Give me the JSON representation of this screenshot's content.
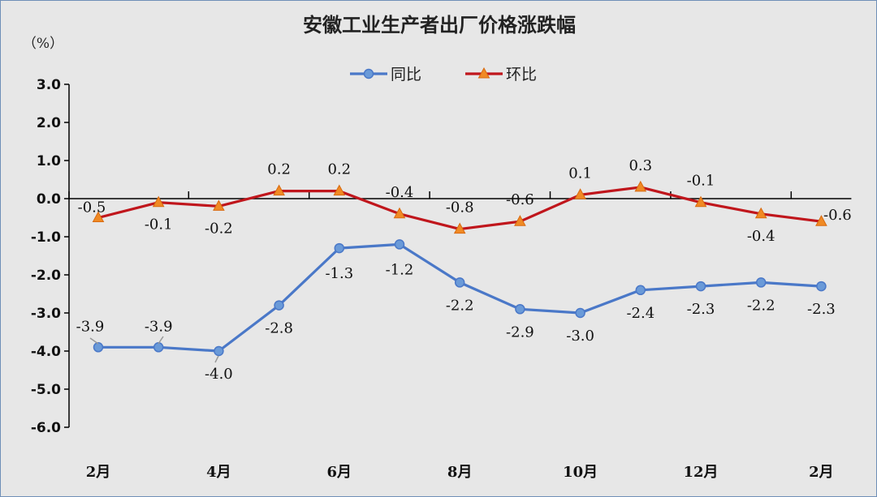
{
  "chart_data": {
    "type": "line",
    "title": "安徽工业生产者出厂价格涨跌幅",
    "unit_label": "（%）",
    "xlabel": "",
    "ylabel": "",
    "ylim": [
      -6.0,
      3.0
    ],
    "yticks": [
      "3.0",
      "2.0",
      "1.0",
      "0.0",
      "-1.0",
      "-2.0",
      "-3.0",
      "-4.0",
      "-5.0",
      "-6.0"
    ],
    "ytick_values": [
      3,
      2,
      1,
      0,
      -1,
      -2,
      -3,
      -4,
      -5,
      -6
    ],
    "x_tick_labels": [
      "2月",
      "4月",
      "6月",
      "8月",
      "10月",
      "12月",
      "2月"
    ],
    "x_tick_indices": [
      0,
      2,
      4,
      6,
      8,
      10,
      12
    ],
    "point_count": 13,
    "legend_position": "top-center",
    "grid": false,
    "series": [
      {
        "name": "同比",
        "color": "#4a78c8",
        "marker": "circle",
        "values": [
          -3.9,
          -3.9,
          -4.0,
          -2.8,
          -1.3,
          -1.2,
          -2.2,
          -2.9,
          -3.0,
          -2.4,
          -2.3,
          -2.2,
          -2.3
        ],
        "labels": [
          "-3.9",
          "-3.9",
          "-4.0",
          "-2.8",
          "-1.3",
          "-1.2",
          "-2.2",
          "-2.9",
          "-3.0",
          "-2.4",
          "-2.3",
          "-2.2",
          "-2.3"
        ]
      },
      {
        "name": "环比",
        "color": "#c0161c",
        "marker_color": "#f08a24",
        "marker": "triangle",
        "values": [
          -0.5,
          -0.1,
          -0.2,
          0.2,
          0.2,
          -0.4,
          -0.8,
          -0.6,
          0.1,
          0.3,
          -0.1,
          -0.4,
          -0.6
        ],
        "labels": [
          "-0.5",
          "-0.1",
          "-0.2",
          "0.2",
          "0.2",
          "-0.4",
          "-0.8",
          "-0.6",
          "0.1",
          "0.3",
          "-0.1",
          "-0.4",
          "-0.6"
        ]
      }
    ]
  }
}
